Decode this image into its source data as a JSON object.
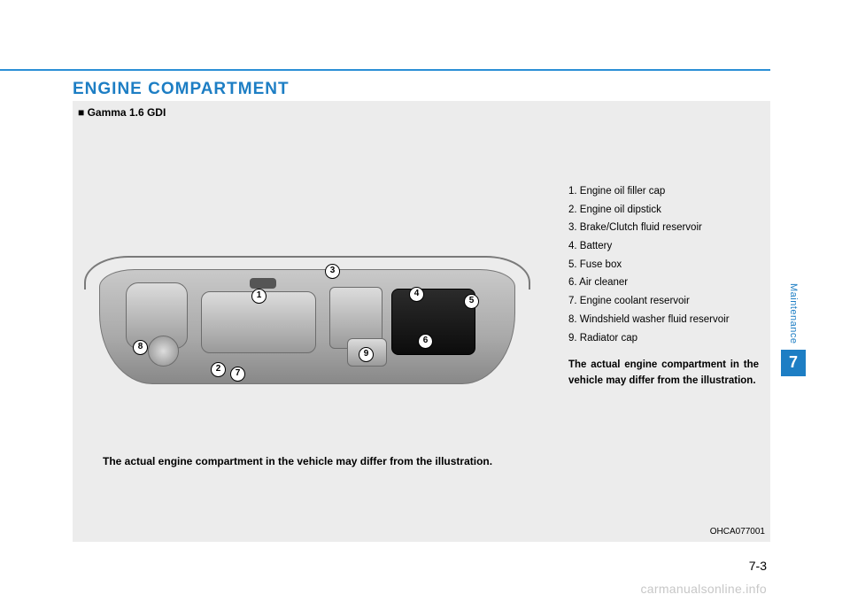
{
  "heading": "ENGINE COMPARTMENT",
  "subheading": "■ Gamma 1.6 GDI",
  "callouts": {
    "c1": "1",
    "c2": "2",
    "c3": "3",
    "c4": "4",
    "c5": "5",
    "c6": "6",
    "c7": "7",
    "c8": "8",
    "c9": "9"
  },
  "caption": "The actual engine compartment in the vehicle may differ from the illustration.",
  "legend": [
    "1. Engine oil filler cap",
    "2. Engine oil dipstick",
    "3. Brake/Clutch fluid reservoir",
    "4. Battery",
    "5. Fuse box",
    "6. Air cleaner",
    "7. Engine coolant reservoir",
    "8. Windshield washer fluid reservoir",
    "9. Radiator cap"
  ],
  "note": "The actual engine compartment in the vehicle may differ from the illustration.",
  "figure_code": "OHCA077001",
  "side_label": "Maintenance",
  "chapter_number": "7",
  "page_number": "7-3",
  "watermark": "carmanualsonline.info",
  "colors": {
    "accent": "#1d7ec4",
    "panel_bg": "#ececec",
    "page_bg": "#ffffff",
    "text": "#000000",
    "watermark": "#c7c7c7"
  }
}
